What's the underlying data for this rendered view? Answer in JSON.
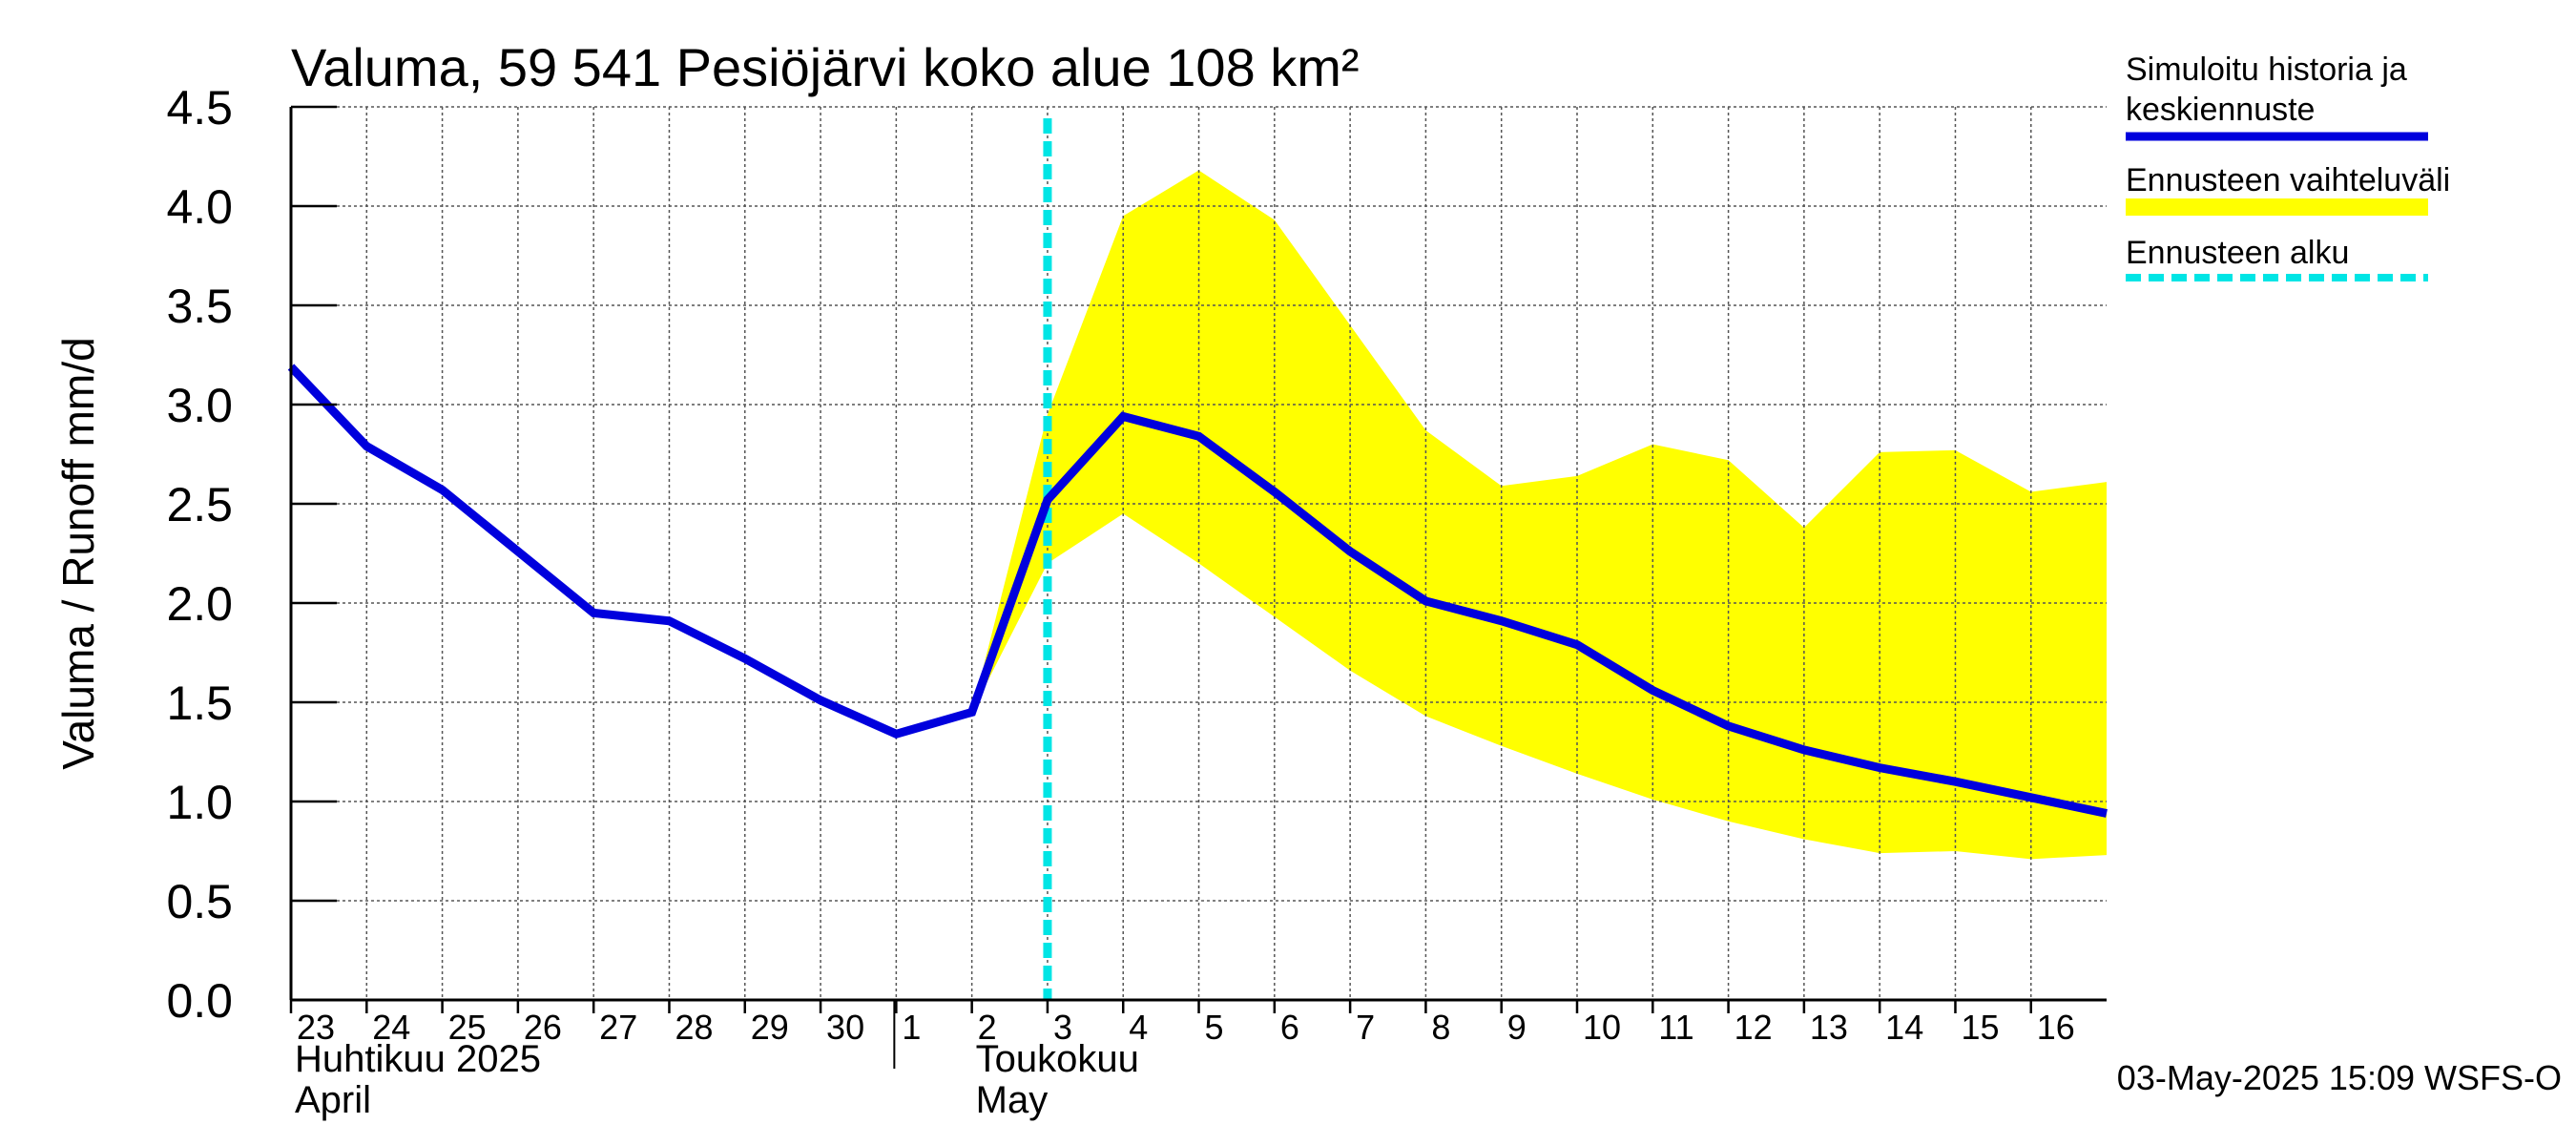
{
  "chart_data": {
    "type": "line",
    "title": "Valuma, 59 541 Pesiöjärvi koko alue 108 km²",
    "ylabel": "Valuma / Runoff    mm/d",
    "ylim": [
      0,
      4.5
    ],
    "yticks": [
      "0.0",
      "0.5",
      "1.0",
      "1.5",
      "2.0",
      "2.5",
      "3.0",
      "3.5",
      "4.0",
      "4.5"
    ],
    "x_start": "2025-04-23",
    "x_end": "2025-05-16T23:59",
    "xticks": [
      "23",
      "24",
      "25",
      "26",
      "27",
      "28",
      "29",
      "30",
      "1",
      "2",
      "3",
      "4",
      "5",
      "6",
      "7",
      "8",
      "9",
      "10",
      "11",
      "12",
      "13",
      "14",
      "15",
      "16"
    ],
    "xtick_dates": [
      "2025-04-23",
      "2025-04-24",
      "2025-04-25",
      "2025-04-26",
      "2025-04-27",
      "2025-04-28",
      "2025-04-29",
      "2025-04-30",
      "2025-05-01",
      "2025-05-02",
      "2025-05-03",
      "2025-05-04",
      "2025-05-05",
      "2025-05-06",
      "2025-05-07",
      "2025-05-08",
      "2025-05-09",
      "2025-05-10",
      "2025-05-11",
      "2025-05-12",
      "2025-05-13",
      "2025-05-14",
      "2025-05-15",
      "2025-05-16"
    ],
    "month_labels": [
      {
        "date": "2025-04-23",
        "fi": "Huhtikuu  2025",
        "en": "April"
      },
      {
        "date": "2025-05-02",
        "fi": "Toukokuu",
        "en": "May"
      }
    ],
    "month_divider_date": "2025-05-01",
    "grid": true,
    "legend_position": "right",
    "series": [
      {
        "name": "Simuloitu historia ja keskiennuste",
        "kind": "line",
        "color": "#0000dd",
        "x": [
          "2025-04-23",
          "2025-04-24",
          "2025-04-25",
          "2025-04-26",
          "2025-04-27",
          "2025-04-28",
          "2025-04-29",
          "2025-04-30",
          "2025-05-01",
          "2025-05-02",
          "2025-05-03",
          "2025-05-04",
          "2025-05-05",
          "2025-05-06",
          "2025-05-07",
          "2025-05-08",
          "2025-05-09",
          "2025-05-10",
          "2025-05-11",
          "2025-05-12",
          "2025-05-13",
          "2025-05-14",
          "2025-05-15",
          "2025-05-16",
          "2025-05-16T23:59"
        ],
        "y": [
          3.19,
          2.79,
          2.57,
          2.26,
          1.95,
          1.91,
          1.72,
          1.51,
          1.34,
          1.45,
          2.52,
          2.94,
          2.84,
          2.56,
          2.26,
          2.01,
          1.91,
          1.79,
          1.56,
          1.38,
          1.26,
          1.17,
          1.1,
          1.02,
          0.94
        ]
      },
      {
        "name": "Ennusteen vaihteluväli",
        "kind": "band",
        "color": "#ffff00",
        "x": [
          "2025-05-02",
          "2025-05-03",
          "2025-05-04",
          "2025-05-05",
          "2025-05-06",
          "2025-05-07",
          "2025-05-08",
          "2025-05-09",
          "2025-05-10",
          "2025-05-11",
          "2025-05-12",
          "2025-05-13",
          "2025-05-14",
          "2025-05-15",
          "2025-05-16",
          "2025-05-16T23:59"
        ],
        "upper": [
          1.45,
          2.95,
          3.95,
          4.18,
          3.93,
          3.4,
          2.87,
          2.59,
          2.64,
          2.8,
          2.72,
          2.38,
          2.76,
          2.77,
          2.56,
          2.61
        ],
        "lower": [
          1.45,
          2.2,
          2.45,
          2.2,
          1.93,
          1.66,
          1.43,
          1.28,
          1.14,
          1.01,
          0.9,
          0.81,
          0.74,
          0.75,
          0.71,
          0.73
        ]
      },
      {
        "name": "Ennusteen alku",
        "kind": "vline",
        "color": "#00e5e5",
        "date": "2025-05-03"
      }
    ],
    "footer": "03-May-2025 15:09 WSFS-O"
  },
  "legend": {
    "items": [
      {
        "line1": "Simuloitu historia ja",
        "line2": "keskiennuste",
        "color": "#0000dd",
        "style": "solid"
      },
      {
        "line1": "Ennusteen vaihteluväli",
        "line2": "",
        "color": "#ffff00",
        "style": "band"
      },
      {
        "line1": "Ennusteen alku",
        "line2": "",
        "color": "#00e5e5",
        "style": "dashed"
      }
    ]
  }
}
